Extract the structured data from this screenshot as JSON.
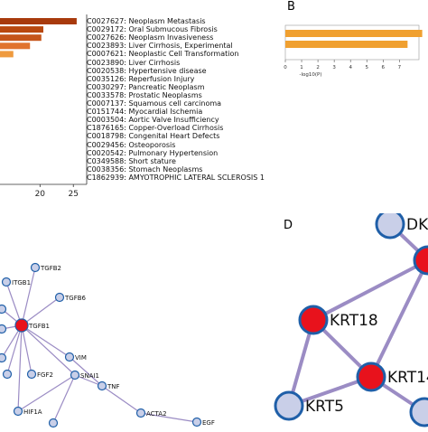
{
  "panel_letters": {
    "b": "B",
    "d": "D"
  },
  "chart_data": [
    {
      "type": "bar",
      "orientation": "horizontal",
      "panel": "A",
      "categories": [
        "C0027627: Neoplasm Metastasis",
        "C0029172: Oral Submucous Fibrosis",
        "C0027626: Neoplasm Invasiveness",
        "C0023893: Liver Cirrhosis, Experimental",
        "C0007621: Neoplastic Cell Transformation",
        "C0023890: Liver Cirrhosis",
        "C0020538: Hypertensive disease",
        "C0035126: Reperfusion Injury",
        "C0030297: Pancreatic Neoplasm",
        "C0033578: Prostatic Neoplasms",
        "C0007137: Squamous cell carcinoma",
        "C0151744: Myocardial Ischemia",
        "C0003504: Aortic Valve Insufficiency",
        "C1876165: Copper-Overload Cirrhosis",
        "C0018798: Congenital Heart Defects",
        "C0029456: Osteoporosis",
        "C0020542: Pulmonary Hypertension",
        "C0349588: Short stature",
        "C0038356: Stomach Neoplasms",
        "C1862939: AMYOTROPHIC LATERAL SCLEROSIS 1"
      ],
      "values": [
        25.5,
        20.5,
        20.2,
        18.5,
        16.0,
        null,
        null,
        null,
        null,
        null,
        null,
        null,
        null,
        null,
        null,
        null,
        null,
        null,
        null,
        null
      ],
      "bar_colors": [
        "#a83a0c",
        "#b9480f",
        "#c5551a",
        "#e0732e",
        "#ef9a3e"
      ],
      "xticks": [
        "20",
        "25"
      ],
      "xlim": [
        14,
        27
      ]
    },
    {
      "type": "bar",
      "orientation": "horizontal",
      "panel": "B",
      "values": [
        8.4,
        7.5
      ],
      "bar_color": "#f0a030",
      "xticks": [
        "0",
        "1",
        "2",
        "3",
        "4",
        "5",
        "6",
        "7"
      ],
      "xlim": [
        0,
        8.2
      ],
      "xlabel": "-log10(P)"
    }
  ],
  "network_c": {
    "nodes": [
      {
        "id": "TGFB2",
        "label": "TGFB2",
        "hub": false
      },
      {
        "id": "ITGB1",
        "label": "ITGB1",
        "hub": false
      },
      {
        "id": "TGFB6",
        "label": "TGFB6",
        "hub": false
      },
      {
        "id": "TGFB1",
        "label": "TGFB1",
        "hub": true
      },
      {
        "id": "VIM",
        "label": "VIM",
        "hub": false
      },
      {
        "id": "FGF2",
        "label": "FGF2",
        "hub": false
      },
      {
        "id": "SNAI1",
        "label": "SNAI1",
        "hub": false
      },
      {
        "id": "TNF",
        "label": "TNF",
        "hub": false
      },
      {
        "id": "ACTA2",
        "label": "ACTA2",
        "hub": false
      },
      {
        "id": "HIF1A",
        "label": "HIF1A",
        "hub": false
      },
      {
        "id": "EGF",
        "label": "EGF",
        "hub": false
      },
      {
        "id": "X1",
        "label": "",
        "hub": false
      },
      {
        "id": "X2",
        "label": "",
        "hub": false
      },
      {
        "id": "X3",
        "label": "",
        "hub": false
      },
      {
        "id": "X4",
        "label": "",
        "hub": false
      },
      {
        "id": "X5",
        "label": "",
        "hub": false
      }
    ],
    "edges": [
      [
        "TGFB1",
        "TGFB2"
      ],
      [
        "TGFB1",
        "ITGB1"
      ],
      [
        "TGFB1",
        "TGFB6"
      ],
      [
        "TGFB1",
        "VIM"
      ],
      [
        "TGFB1",
        "FGF2"
      ],
      [
        "TGFB1",
        "SNAI1"
      ],
      [
        "TGFB1",
        "X1"
      ],
      [
        "TGFB1",
        "X2"
      ],
      [
        "TGFB1",
        "X3"
      ],
      [
        "TGFB1",
        "X4"
      ],
      [
        "TGFB1",
        "HIF1A"
      ],
      [
        "SNAI1",
        "TNF"
      ],
      [
        "VIM",
        "TNF"
      ],
      [
        "TNF",
        "ACTA2"
      ],
      [
        "ACTA2",
        "EGF"
      ],
      [
        "SNAI1",
        "X5"
      ],
      [
        "SNAI1",
        "HIF1A"
      ]
    ]
  },
  "network_d": {
    "nodes": [
      {
        "id": "DKK",
        "label": "DKK",
        "hub": false
      },
      {
        "id": "HUB_R",
        "label": "",
        "hub": true
      },
      {
        "id": "KRT18",
        "label": "KRT18",
        "hub": true
      },
      {
        "id": "KRT14",
        "label": "KRT14",
        "hub": true
      },
      {
        "id": "KRT5",
        "label": "KRT5",
        "hub": false
      },
      {
        "id": "LR",
        "label": "",
        "hub": false
      }
    ],
    "edges": [
      [
        "DKK",
        "HUB_R"
      ],
      [
        "HUB_R",
        "KRT18"
      ],
      [
        "HUB_R",
        "KRT14"
      ],
      [
        "KRT18",
        "KRT14"
      ],
      [
        "KRT18",
        "KRT5"
      ],
      [
        "KRT14",
        "KRT5"
      ],
      [
        "KRT14",
        "LR"
      ]
    ]
  },
  "colors": {
    "hub_fill": "#e8121c",
    "node_fill": "#c9cfe8",
    "node_stroke": "#1f5fa8",
    "edge_stroke": "#9b8cc4",
    "text": "#111111"
  }
}
